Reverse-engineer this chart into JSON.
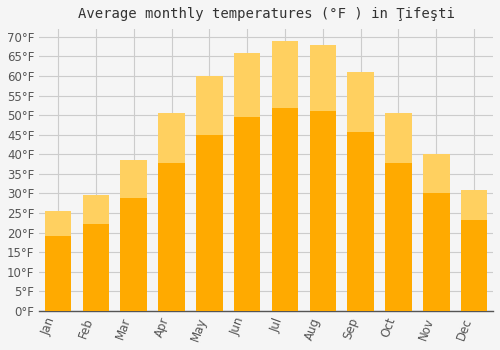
{
  "title": "Average monthly temperatures (°F ) in Ţifeşti",
  "months": [
    "Jan",
    "Feb",
    "Mar",
    "Apr",
    "May",
    "Jun",
    "Jul",
    "Aug",
    "Sep",
    "Oct",
    "Nov",
    "Dec"
  ],
  "values": [
    25.5,
    29.5,
    38.5,
    50.5,
    60.0,
    66.0,
    69.0,
    68.0,
    61.0,
    50.5,
    40.0,
    31.0
  ],
  "bar_color": "#FFAA00",
  "bar_color_top": "#FFD060",
  "background_color": "#F5F5F5",
  "grid_color": "#CCCCCC",
  "text_color": "#555555",
  "ylim": [
    0,
    72
  ],
  "yticks": [
    0,
    5,
    10,
    15,
    20,
    25,
    30,
    35,
    40,
    45,
    50,
    55,
    60,
    65,
    70
  ],
  "title_fontsize": 10,
  "tick_fontsize": 8.5
}
